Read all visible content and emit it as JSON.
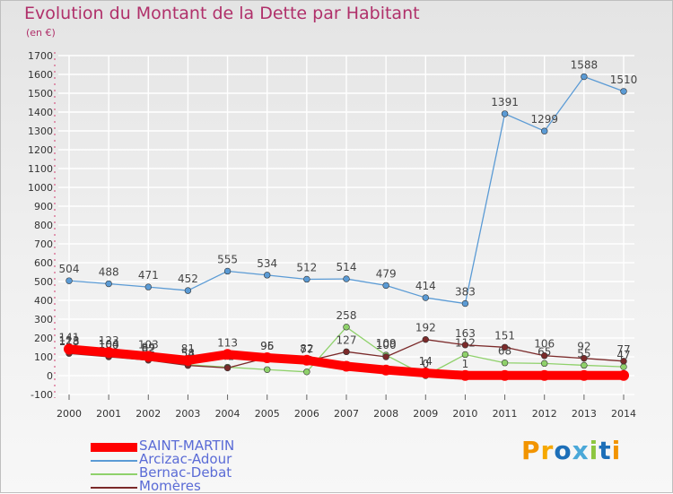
{
  "header": {
    "title": "Evolution du Montant de la Dette par Habitant",
    "unit": "(en €)"
  },
  "logo": {
    "text": "Proxiti",
    "colors": [
      "#f29400",
      "#f6a800",
      "#1d6fb8",
      "#4aa8d8",
      "#8dc63f",
      "#1d6fb8",
      "#f29400"
    ]
  },
  "chart_data": {
    "type": "line",
    "x": [
      "2000",
      "2001",
      "2002",
      "2003",
      "2004",
      "2005",
      "2006",
      "2007",
      "2008",
      "2009",
      "2010",
      "2011",
      "2012",
      "2013",
      "2014"
    ],
    "ylim": [
      -100,
      1700
    ],
    "yticks": [
      -100,
      0,
      100,
      200,
      300,
      400,
      500,
      600,
      700,
      800,
      900,
      1000,
      1100,
      1200,
      1300,
      1400,
      1500,
      1600,
      1700
    ],
    "grid": true,
    "legend_position": "bottom-left",
    "series": [
      {
        "name": "SAINT-MARTIN",
        "color": "#ff0000",
        "values": [
          141,
          123,
          103,
          81,
          113,
          95,
          82,
          50,
          30,
          14,
          1,
          1,
          1,
          1,
          1
        ],
        "labels": [
          "141",
          "123",
          "103",
          "81",
          "113",
          "95",
          "82",
          "",
          "",
          "14",
          "1",
          "",
          "",
          "",
          ""
        ]
      },
      {
        "name": "Arcizac-Adour",
        "color": "#5b9bd5",
        "values": [
          504,
          488,
          471,
          452,
          555,
          534,
          512,
          514,
          479,
          414,
          383,
          1391,
          1299,
          1588,
          1510
        ],
        "labels": [
          "504",
          "488",
          "471",
          "452",
          "555",
          "534",
          "512",
          "514",
          "479",
          "414",
          "383",
          "1391",
          "1299",
          "1588",
          "1510"
        ]
      },
      {
        "name": "Bernac-Debat",
        "color": "#8fd16b",
        "values": [
          123,
          104,
          89,
          58,
          45,
          32,
          20,
          258,
          109,
          0,
          112,
          68,
          65,
          55,
          47
        ],
        "labels": [
          "123",
          "104",
          "89",
          "58",
          "45",
          "32",
          "20",
          "258",
          "109",
          "0",
          "112",
          "68",
          "65",
          "55",
          "47"
        ]
      },
      {
        "name": "Momères",
        "color": "#7b2a2a",
        "values": [
          118,
          100,
          82,
          54,
          41,
          96,
          77,
          127,
          100,
          192,
          163,
          151,
          106,
          92,
          77
        ],
        "labels": [
          "118",
          "100",
          "82",
          "54",
          "41",
          "96",
          "77",
          "127",
          "100",
          "192",
          "163",
          "151",
          "106",
          "92",
          "77"
        ]
      }
    ]
  }
}
